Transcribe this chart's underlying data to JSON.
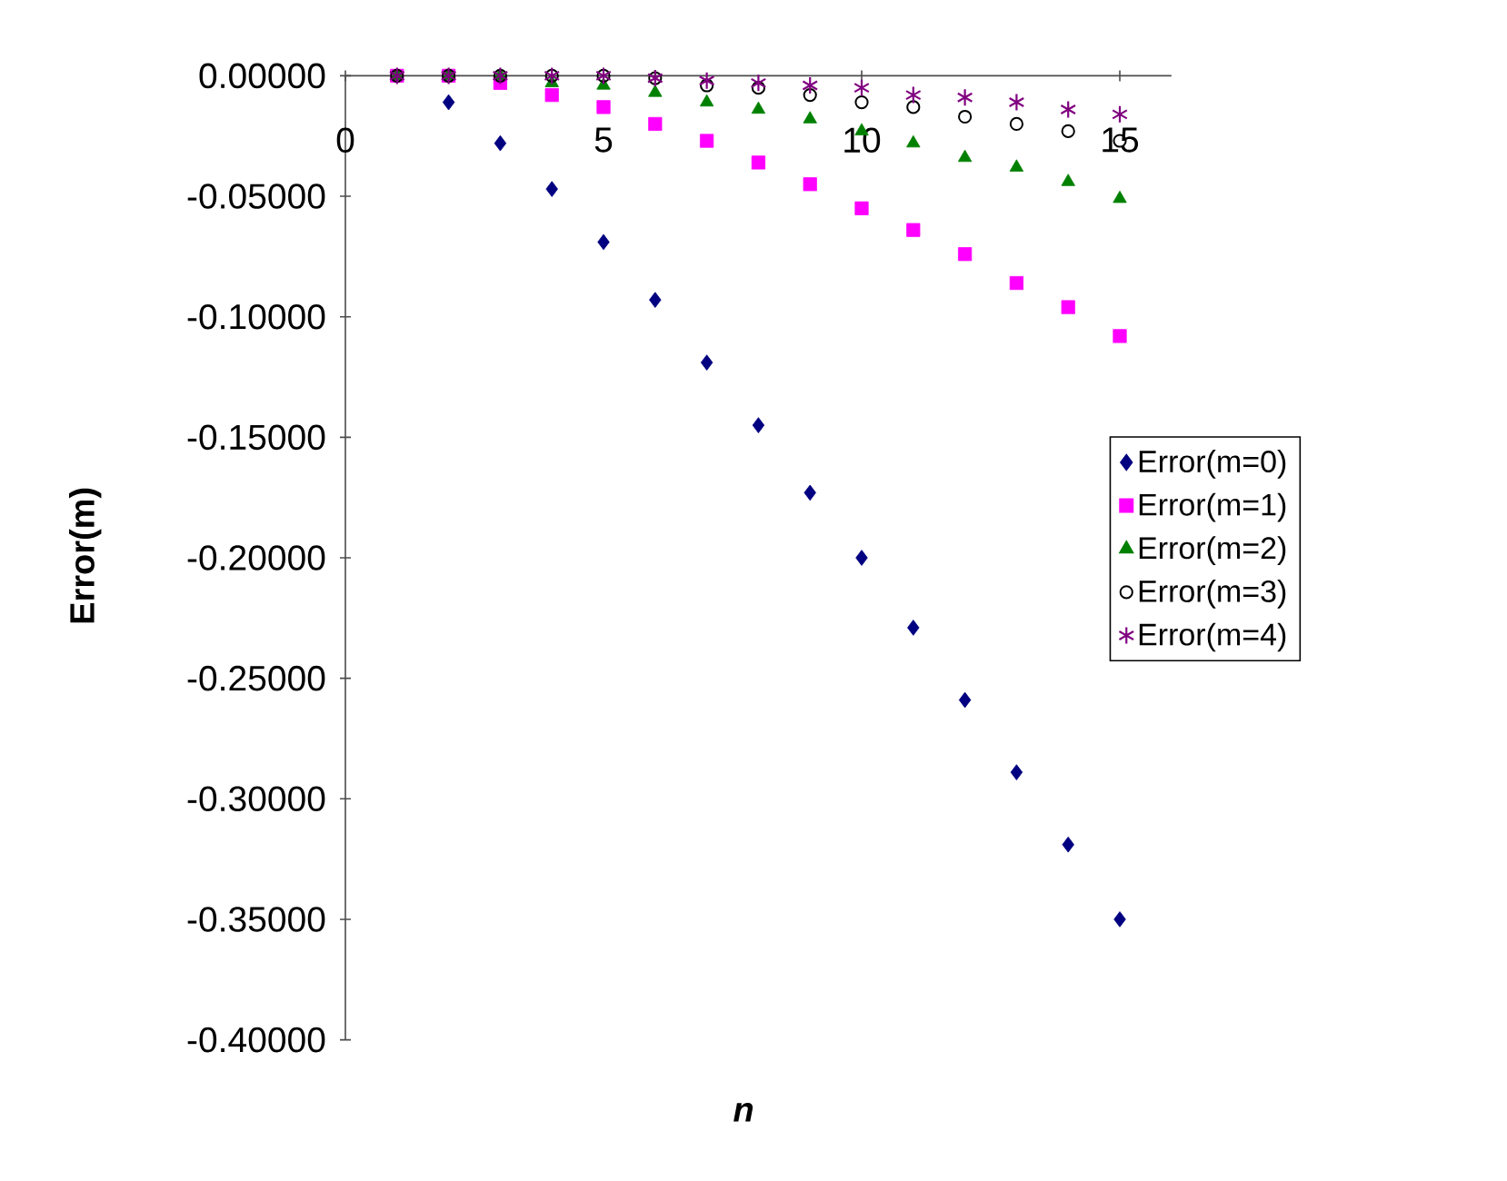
{
  "chart_data": {
    "type": "scatter",
    "xlabel": "n",
    "ylabel": "Error(m)",
    "x": [
      1,
      2,
      3,
      4,
      5,
      6,
      7,
      8,
      9,
      10,
      11,
      12,
      13,
      14,
      15
    ],
    "xlim": [
      0,
      16
    ],
    "xticks": [
      0,
      5,
      10,
      15
    ],
    "ylim": [
      -0.4,
      0
    ],
    "yticks": [
      {
        "value": 0,
        "label": "0.00000"
      },
      {
        "value": -0.05,
        "label": "-0.05000"
      },
      {
        "value": -0.1,
        "label": "-0.10000"
      },
      {
        "value": -0.15,
        "label": "-0.15000"
      },
      {
        "value": -0.2,
        "label": "-0.20000"
      },
      {
        "value": -0.25,
        "label": "-0.25000"
      },
      {
        "value": -0.3,
        "label": "-0.30000"
      },
      {
        "value": -0.35,
        "label": "-0.35000"
      },
      {
        "value": -0.4,
        "label": "-0.40000"
      }
    ],
    "legend": "right",
    "series": [
      {
        "name": "Error(m=0)",
        "color": "#000080",
        "marker": "diamond",
        "values": [
          null,
          -0.011,
          -0.028,
          -0.047,
          -0.069,
          -0.093,
          -0.119,
          -0.145,
          -0.173,
          -0.2,
          -0.229,
          -0.259,
          -0.289,
          -0.319,
          -0.35
        ]
      },
      {
        "name": "Error(m=1)",
        "color": "#ff00ff",
        "marker": "square",
        "values": [
          0,
          0,
          -0.003,
          -0.008,
          -0.013,
          -0.02,
          -0.027,
          -0.036,
          -0.045,
          -0.055,
          -0.064,
          -0.074,
          -0.086,
          -0.096,
          -0.108
        ]
      },
      {
        "name": "Error(m=2)",
        "color": "#008000",
        "marker": "triangle",
        "values": [
          0,
          0,
          0,
          -0.003,
          -0.004,
          -0.007,
          -0.011,
          -0.014,
          -0.018,
          -0.023,
          -0.028,
          -0.034,
          -0.038,
          -0.044,
          -0.051
        ]
      },
      {
        "name": "Error(m=3)",
        "color": "#000000",
        "marker": "circle",
        "values": [
          0,
          0,
          0,
          0,
          0,
          -0.001,
          -0.004,
          -0.005,
          -0.008,
          -0.011,
          -0.013,
          -0.017,
          -0.02,
          -0.023,
          -0.027
        ]
      },
      {
        "name": "Error(m=4)",
        "color": "#800080",
        "marker": "cross",
        "values": [
          0,
          0,
          0,
          0,
          0,
          -0.001,
          -0.002,
          -0.003,
          -0.004,
          -0.005,
          -0.008,
          -0.009,
          -0.011,
          -0.014,
          -0.016
        ]
      }
    ]
  }
}
